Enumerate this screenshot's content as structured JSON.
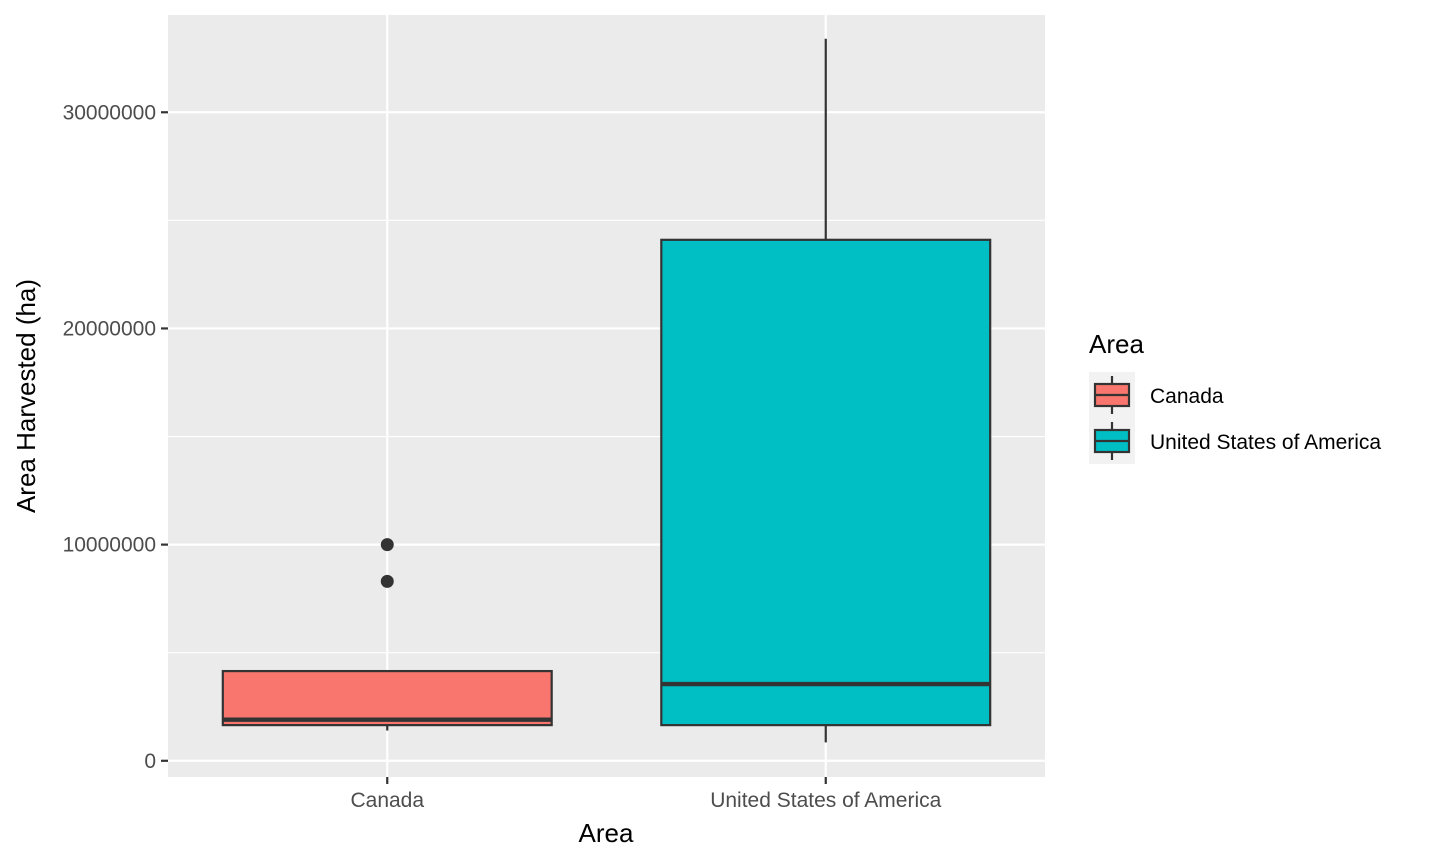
{
  "chart_data": {
    "type": "boxplot",
    "xlabel": "Area",
    "ylabel": "Area Harvested (ha)",
    "ylim": [
      -750000,
      34500000
    ],
    "y_ticks": [
      0,
      10000000,
      20000000,
      30000000
    ],
    "y_tick_labels": [
      "0",
      "10000000",
      "20000000",
      "30000000"
    ],
    "grid": true,
    "categories": [
      "Canada",
      "United States of America"
    ],
    "series": [
      {
        "name": "Canada",
        "color": "#F8766D",
        "whisker_low": 1400000,
        "q1": 1650000,
        "median": 1900000,
        "q3": 4150000,
        "whisker_high": 4150000,
        "outliers": [
          8300000,
          10000000
        ]
      },
      {
        "name": "United States of America",
        "color": "#00BFC4",
        "whisker_low": 850000,
        "q1": 1650000,
        "median": 3550000,
        "q3": 24100000,
        "whisker_high": 33400000,
        "outliers": []
      }
    ],
    "legend": {
      "title": "Area",
      "placement": "right",
      "entries": [
        "Canada",
        "United States of America"
      ]
    }
  }
}
